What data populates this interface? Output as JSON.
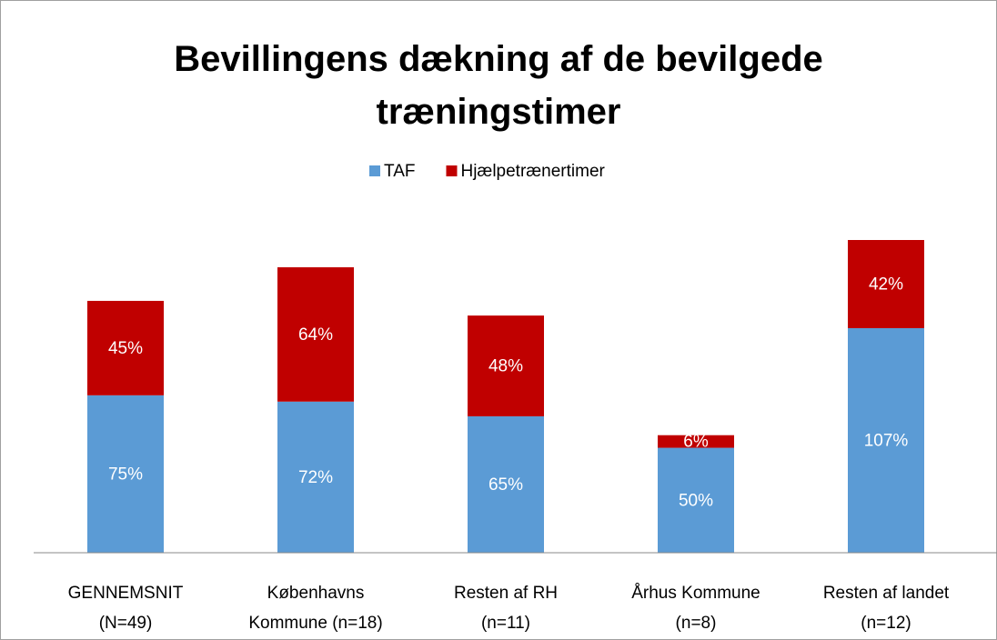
{
  "chart_data": {
    "type": "stacked_bar",
    "title": "Bevillingens dækning af de bevilgede træningstimer",
    "categories": [
      "GENNEMSNIT\n(N=49)",
      "Københavns\nKommune (n=18)",
      "Resten af RH\n(n=11)",
      "Århus Kommune\n(n=8)",
      "Resten af landet\n(n=12)"
    ],
    "series": [
      {
        "name": "TAF",
        "color": "#5b9bd5",
        "values": [
          75,
          72,
          65,
          50,
          107
        ],
        "value_labels": [
          "75%",
          "72%",
          "65%",
          "50%",
          "107%"
        ]
      },
      {
        "name": "Hjælpetrænertimer",
        "color": "#c00000",
        "values": [
          45,
          64,
          48,
          6,
          42
        ],
        "value_labels": [
          "45%",
          "64%",
          "48%",
          "6%",
          "42%"
        ]
      }
    ],
    "legend": "top"
  }
}
